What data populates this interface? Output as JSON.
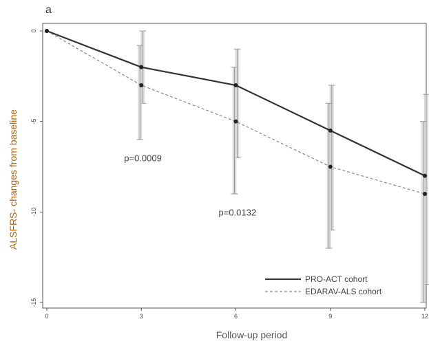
{
  "chart_data": {
    "type": "line",
    "panel_label": "a",
    "xlabel": "Follow-up period",
    "ylabel": "ALSFRS- changes from baseline",
    "x_ticks": [
      0,
      3,
      6,
      9,
      12
    ],
    "y_ticks": [
      0,
      5,
      10,
      15
    ],
    "y_tick_labels": [
      "0",
      "-5",
      "-10",
      "-15"
    ],
    "xlim": [
      0,
      12
    ],
    "ylim": [
      0,
      -15
    ],
    "grid": false,
    "legend_position": "bottom-right",
    "series": [
      {
        "name": "PRO-ACT cohort",
        "style": "solid",
        "color": "#333333",
        "x": [
          0,
          3,
          6,
          9,
          12
        ],
        "y": [
          0,
          -2,
          -3,
          -5.5,
          -8
        ],
        "err_low": [
          0,
          -4,
          -7,
          -11,
          -14
        ],
        "err_high": [
          0,
          0,
          -1,
          -3,
          -3.5
        ]
      },
      {
        "name": "EDARAV-ALS cohort",
        "style": "dashed",
        "color": "#888888",
        "x": [
          0,
          3,
          6,
          9,
          12
        ],
        "y": [
          0,
          -3,
          -5,
          -7.5,
          -9
        ],
        "err_low": [
          0,
          -6,
          -9,
          -12,
          -15
        ],
        "err_high": [
          0,
          -0.8,
          -2,
          -4,
          -5
        ]
      }
    ],
    "annotations": [
      {
        "text": "p=0.0009",
        "x": 3,
        "y": -7
      },
      {
        "text": "p=0.0132",
        "x": 6,
        "y": -10
      }
    ]
  }
}
